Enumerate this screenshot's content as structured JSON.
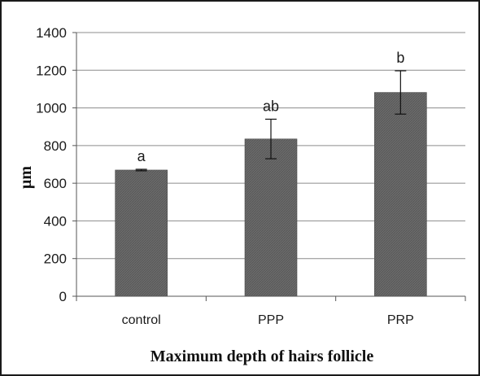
{
  "chart_data": {
    "type": "bar",
    "title": "",
    "xlabel": "Maximum depth of hairs follicle",
    "ylabel": "µm",
    "categories": [
      "control",
      "PPP",
      "PRP"
    ],
    "values": [
      670,
      835,
      1082
    ],
    "errors": [
      4,
      105,
      115
    ],
    "significance_labels": [
      "a",
      "ab",
      "b"
    ],
    "ylim": [
      0,
      1400
    ],
    "yticks": [
      0,
      200,
      400,
      600,
      800,
      1000,
      1200,
      1400
    ],
    "grid": true,
    "legend": "none",
    "bar_color": "#6b6b6b"
  }
}
